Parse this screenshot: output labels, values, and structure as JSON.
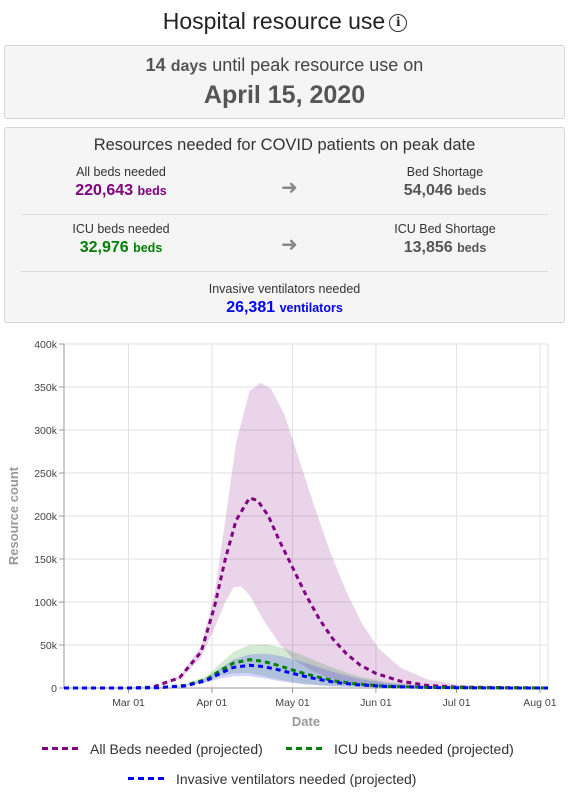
{
  "header": {
    "title": "Hospital resource use",
    "info_icon": "info-circle-icon"
  },
  "peak": {
    "days_number": "14",
    "days_unit": "days",
    "line_text": "until peak resource use on",
    "date": "April 15, 2020"
  },
  "resources": {
    "title": "Resources needed for COVID patients on peak date",
    "all_beds": {
      "label": "All beds needed",
      "value": "220,643",
      "unit": "beds"
    },
    "bed_shortage": {
      "label": "Bed Shortage",
      "value": "54,046",
      "unit": "beds"
    },
    "icu_beds": {
      "label": "ICU beds needed",
      "value": "32,976",
      "unit": "beds"
    },
    "icu_shortage": {
      "label": "ICU Bed Shortage",
      "value": "13,856",
      "unit": "beds"
    },
    "ventilators": {
      "label": "Invasive ventilators needed",
      "value": "26,381",
      "unit": "ventilators"
    },
    "arrow_icon": "arrow-right-icon"
  },
  "colors": {
    "all_beds": "#800080",
    "icu_beds": "#008000",
    "ventilators": "#0000ff",
    "shortage": "#555555"
  },
  "chart_data": {
    "type": "line",
    "xlabel": "Date",
    "ylabel": "Resource count",
    "x_ticks": [
      "Mar 01",
      "Apr 01",
      "May 01",
      "Jun 01",
      "Jul 01",
      "Aug 01"
    ],
    "y_ticks": [
      "0",
      "50k",
      "100k",
      "150k",
      "200k",
      "250k",
      "300k",
      "350k",
      "400k"
    ],
    "ylim": [
      0,
      400000
    ],
    "xlim": [
      "2020-02-06",
      "2020-08-04"
    ],
    "grid": true,
    "legend_position": "bottom",
    "series": [
      {
        "name": "All Beds needed (projected)",
        "color": "#800080",
        "points": [
          [
            "2020-02-06",
            0
          ],
          [
            "2020-03-01",
            0
          ],
          [
            "2020-03-10",
            1000
          ],
          [
            "2020-03-20",
            12000
          ],
          [
            "2020-03-28",
            42000
          ],
          [
            "2020-04-02",
            95000
          ],
          [
            "2020-04-06",
            150000
          ],
          [
            "2020-04-10",
            195000
          ],
          [
            "2020-04-15",
            221000
          ],
          [
            "2020-04-18",
            218000
          ],
          [
            "2020-04-22",
            200000
          ],
          [
            "2020-04-26",
            172000
          ],
          [
            "2020-05-01",
            140000
          ],
          [
            "2020-05-06",
            108000
          ],
          [
            "2020-05-11",
            80000
          ],
          [
            "2020-05-16",
            57000
          ],
          [
            "2020-05-21",
            40000
          ],
          [
            "2020-05-26",
            27000
          ],
          [
            "2020-06-01",
            17000
          ],
          [
            "2020-06-10",
            8000
          ],
          [
            "2020-06-20",
            3000
          ],
          [
            "2020-07-01",
            1000
          ],
          [
            "2020-08-04",
            0
          ]
        ],
        "band_upper": [
          [
            "2020-02-06",
            0
          ],
          [
            "2020-03-01",
            0
          ],
          [
            "2020-03-10",
            1000
          ],
          [
            "2020-03-20",
            14000
          ],
          [
            "2020-03-28",
            48000
          ],
          [
            "2020-04-02",
            110000
          ],
          [
            "2020-04-06",
            195000
          ],
          [
            "2020-04-10",
            285000
          ],
          [
            "2020-04-15",
            345000
          ],
          [
            "2020-04-19",
            355000
          ],
          [
            "2020-04-23",
            348000
          ],
          [
            "2020-04-28",
            318000
          ],
          [
            "2020-05-03",
            270000
          ],
          [
            "2020-05-09",
            212000
          ],
          [
            "2020-05-15",
            158000
          ],
          [
            "2020-05-21",
            112000
          ],
          [
            "2020-05-27",
            74000
          ],
          [
            "2020-06-02",
            46000
          ],
          [
            "2020-06-10",
            24000
          ],
          [
            "2020-06-20",
            10000
          ],
          [
            "2020-07-01",
            4000
          ],
          [
            "2020-07-15",
            1000
          ],
          [
            "2020-08-04",
            0
          ]
        ],
        "band_lower": [
          [
            "2020-02-06",
            0
          ],
          [
            "2020-03-01",
            0
          ],
          [
            "2020-03-10",
            800
          ],
          [
            "2020-03-20",
            10000
          ],
          [
            "2020-03-28",
            35000
          ],
          [
            "2020-04-02",
            70000
          ],
          [
            "2020-04-06",
            100000
          ],
          [
            "2020-04-09",
            117000
          ],
          [
            "2020-04-12",
            118000
          ],
          [
            "2020-04-15",
            108000
          ],
          [
            "2020-04-20",
            80000
          ],
          [
            "2020-04-26",
            52000
          ],
          [
            "2020-05-01",
            34000
          ],
          [
            "2020-05-08",
            20000
          ],
          [
            "2020-05-15",
            11000
          ],
          [
            "2020-05-25",
            5000
          ],
          [
            "2020-06-05",
            2000
          ],
          [
            "2020-06-20",
            500
          ],
          [
            "2020-08-04",
            0
          ]
        ]
      },
      {
        "name": "ICU beds needed (projected)",
        "color": "#008000",
        "points": [
          [
            "2020-02-06",
            0
          ],
          [
            "2020-03-01",
            0
          ],
          [
            "2020-03-12",
            500
          ],
          [
            "2020-03-22",
            3000
          ],
          [
            "2020-03-30",
            10000
          ],
          [
            "2020-04-04",
            20000
          ],
          [
            "2020-04-09",
            29000
          ],
          [
            "2020-04-15",
            33000
          ],
          [
            "2020-04-20",
            31000
          ],
          [
            "2020-04-26",
            26000
          ],
          [
            "2020-05-03",
            19000
          ],
          [
            "2020-05-10",
            13000
          ],
          [
            "2020-05-17",
            8000
          ],
          [
            "2020-05-25",
            4500
          ],
          [
            "2020-06-05",
            2000
          ],
          [
            "2020-06-20",
            700
          ],
          [
            "2020-07-10",
            200
          ],
          [
            "2020-08-04",
            0
          ]
        ],
        "band_upper": [
          [
            "2020-02-06",
            0
          ],
          [
            "2020-03-01",
            0
          ],
          [
            "2020-03-12",
            600
          ],
          [
            "2020-03-22",
            4000
          ],
          [
            "2020-03-30",
            14000
          ],
          [
            "2020-04-04",
            28000
          ],
          [
            "2020-04-09",
            42000
          ],
          [
            "2020-04-15",
            50000
          ],
          [
            "2020-04-21",
            51000
          ],
          [
            "2020-04-27",
            47000
          ],
          [
            "2020-05-04",
            39000
          ],
          [
            "2020-05-11",
            30000
          ],
          [
            "2020-05-18",
            21000
          ],
          [
            "2020-05-26",
            13000
          ],
          [
            "2020-06-05",
            7000
          ],
          [
            "2020-06-20",
            2500
          ],
          [
            "2020-07-10",
            800
          ],
          [
            "2020-08-04",
            0
          ]
        ],
        "band_lower": [
          [
            "2020-02-06",
            0
          ],
          [
            "2020-03-01",
            0
          ],
          [
            "2020-03-12",
            400
          ],
          [
            "2020-03-22",
            2500
          ],
          [
            "2020-03-30",
            8000
          ],
          [
            "2020-04-04",
            14000
          ],
          [
            "2020-04-09",
            17000
          ],
          [
            "2020-04-14",
            17500
          ],
          [
            "2020-04-20",
            14000
          ],
          [
            "2020-04-27",
            9000
          ],
          [
            "2020-05-05",
            5000
          ],
          [
            "2020-05-15",
            2500
          ],
          [
            "2020-05-30",
            800
          ],
          [
            "2020-06-20",
            200
          ],
          [
            "2020-08-04",
            0
          ]
        ]
      },
      {
        "name": "Invasive ventilators needed (projected)",
        "color": "#0000ff",
        "points": [
          [
            "2020-02-06",
            0
          ],
          [
            "2020-03-01",
            0
          ],
          [
            "2020-03-12",
            400
          ],
          [
            "2020-03-22",
            2500
          ],
          [
            "2020-03-30",
            8500
          ],
          [
            "2020-04-04",
            17000
          ],
          [
            "2020-04-09",
            24000
          ],
          [
            "2020-04-15",
            26400
          ],
          [
            "2020-04-20",
            25000
          ],
          [
            "2020-04-26",
            21000
          ],
          [
            "2020-05-03",
            15500
          ],
          [
            "2020-05-10",
            10500
          ],
          [
            "2020-05-17",
            6500
          ],
          [
            "2020-05-25",
            3800
          ],
          [
            "2020-06-05",
            1700
          ],
          [
            "2020-06-20",
            600
          ],
          [
            "2020-07-10",
            150
          ],
          [
            "2020-08-04",
            0
          ]
        ],
        "band_upper": [
          [
            "2020-02-06",
            0
          ],
          [
            "2020-03-01",
            0
          ],
          [
            "2020-03-12",
            500
          ],
          [
            "2020-03-22",
            3300
          ],
          [
            "2020-03-30",
            11500
          ],
          [
            "2020-04-04",
            23000
          ],
          [
            "2020-04-09",
            33000
          ],
          [
            "2020-04-15",
            39000
          ],
          [
            "2020-04-21",
            40000
          ],
          [
            "2020-04-27",
            37000
          ],
          [
            "2020-05-04",
            31000
          ],
          [
            "2020-05-11",
            24000
          ],
          [
            "2020-05-18",
            17000
          ],
          [
            "2020-05-26",
            10500
          ],
          [
            "2020-06-05",
            5500
          ],
          [
            "2020-06-20",
            2000
          ],
          [
            "2020-07-10",
            600
          ],
          [
            "2020-08-04",
            0
          ]
        ],
        "band_lower": [
          [
            "2020-02-06",
            0
          ],
          [
            "2020-03-01",
            0
          ],
          [
            "2020-03-12",
            300
          ],
          [
            "2020-03-22",
            2000
          ],
          [
            "2020-03-30",
            6500
          ],
          [
            "2020-04-04",
            11000
          ],
          [
            "2020-04-09",
            13500
          ],
          [
            "2020-04-14",
            14000
          ],
          [
            "2020-04-20",
            11500
          ],
          [
            "2020-04-27",
            7500
          ],
          [
            "2020-05-05",
            4200
          ],
          [
            "2020-05-15",
            2000
          ],
          [
            "2020-05-30",
            700
          ],
          [
            "2020-06-20",
            150
          ],
          [
            "2020-08-04",
            0
          ]
        ]
      }
    ]
  }
}
